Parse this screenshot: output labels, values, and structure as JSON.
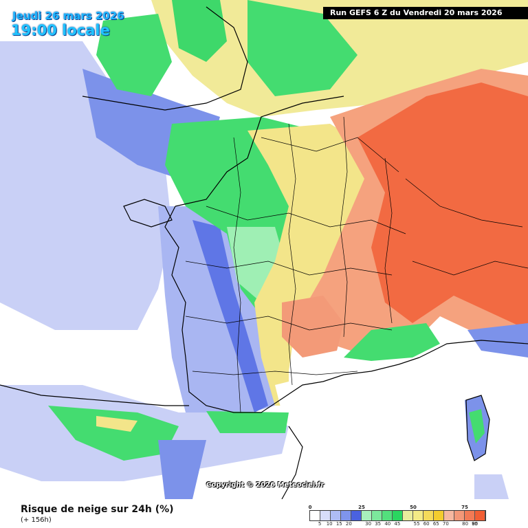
{
  "header": {
    "date": "Jeudi 26 mars 2026",
    "time": "19:00 locale",
    "run": "Run GEFS 6 Z du Vendredi 20 mars 2026"
  },
  "map": {
    "copyright": "Copyright © 2026 Meteociel.fr"
  },
  "legend": {
    "title": "Risque de neige sur 24h (%)",
    "subtitle": "(+ 156h)",
    "major_ticks": [
      "0",
      "25",
      "50",
      "75"
    ],
    "minor_ticks": [
      "5",
      "10",
      "15",
      "20",
      "30",
      "35",
      "40",
      "45",
      "55",
      "60",
      "65",
      "70",
      "80",
      "85",
      "90",
      "95"
    ],
    "colors": [
      "#ffffff",
      "#d8ddfa",
      "#aebcf4",
      "#7f95ec",
      "#4a62e0",
      "#a8f0bc",
      "#7ce89c",
      "#53df7d",
      "#2ad660",
      "#e9ec9c",
      "#f3ea86",
      "#f4da5a",
      "#f3cc2e",
      "#f6b8a0",
      "#f39878",
      "#f27a55",
      "#f15e34"
    ]
  },
  "colors": {
    "white": "#ffffff",
    "paleBlue": "#c5cdf6",
    "blue": "#8fa0ee",
    "deepBlue": "#5a72e4",
    "green": "#44dc70",
    "paleGreen": "#a8f0bc",
    "yellow": "#f3e58a",
    "orange": "#f5a27e",
    "red": "#f26a42",
    "border": "#000000"
  }
}
